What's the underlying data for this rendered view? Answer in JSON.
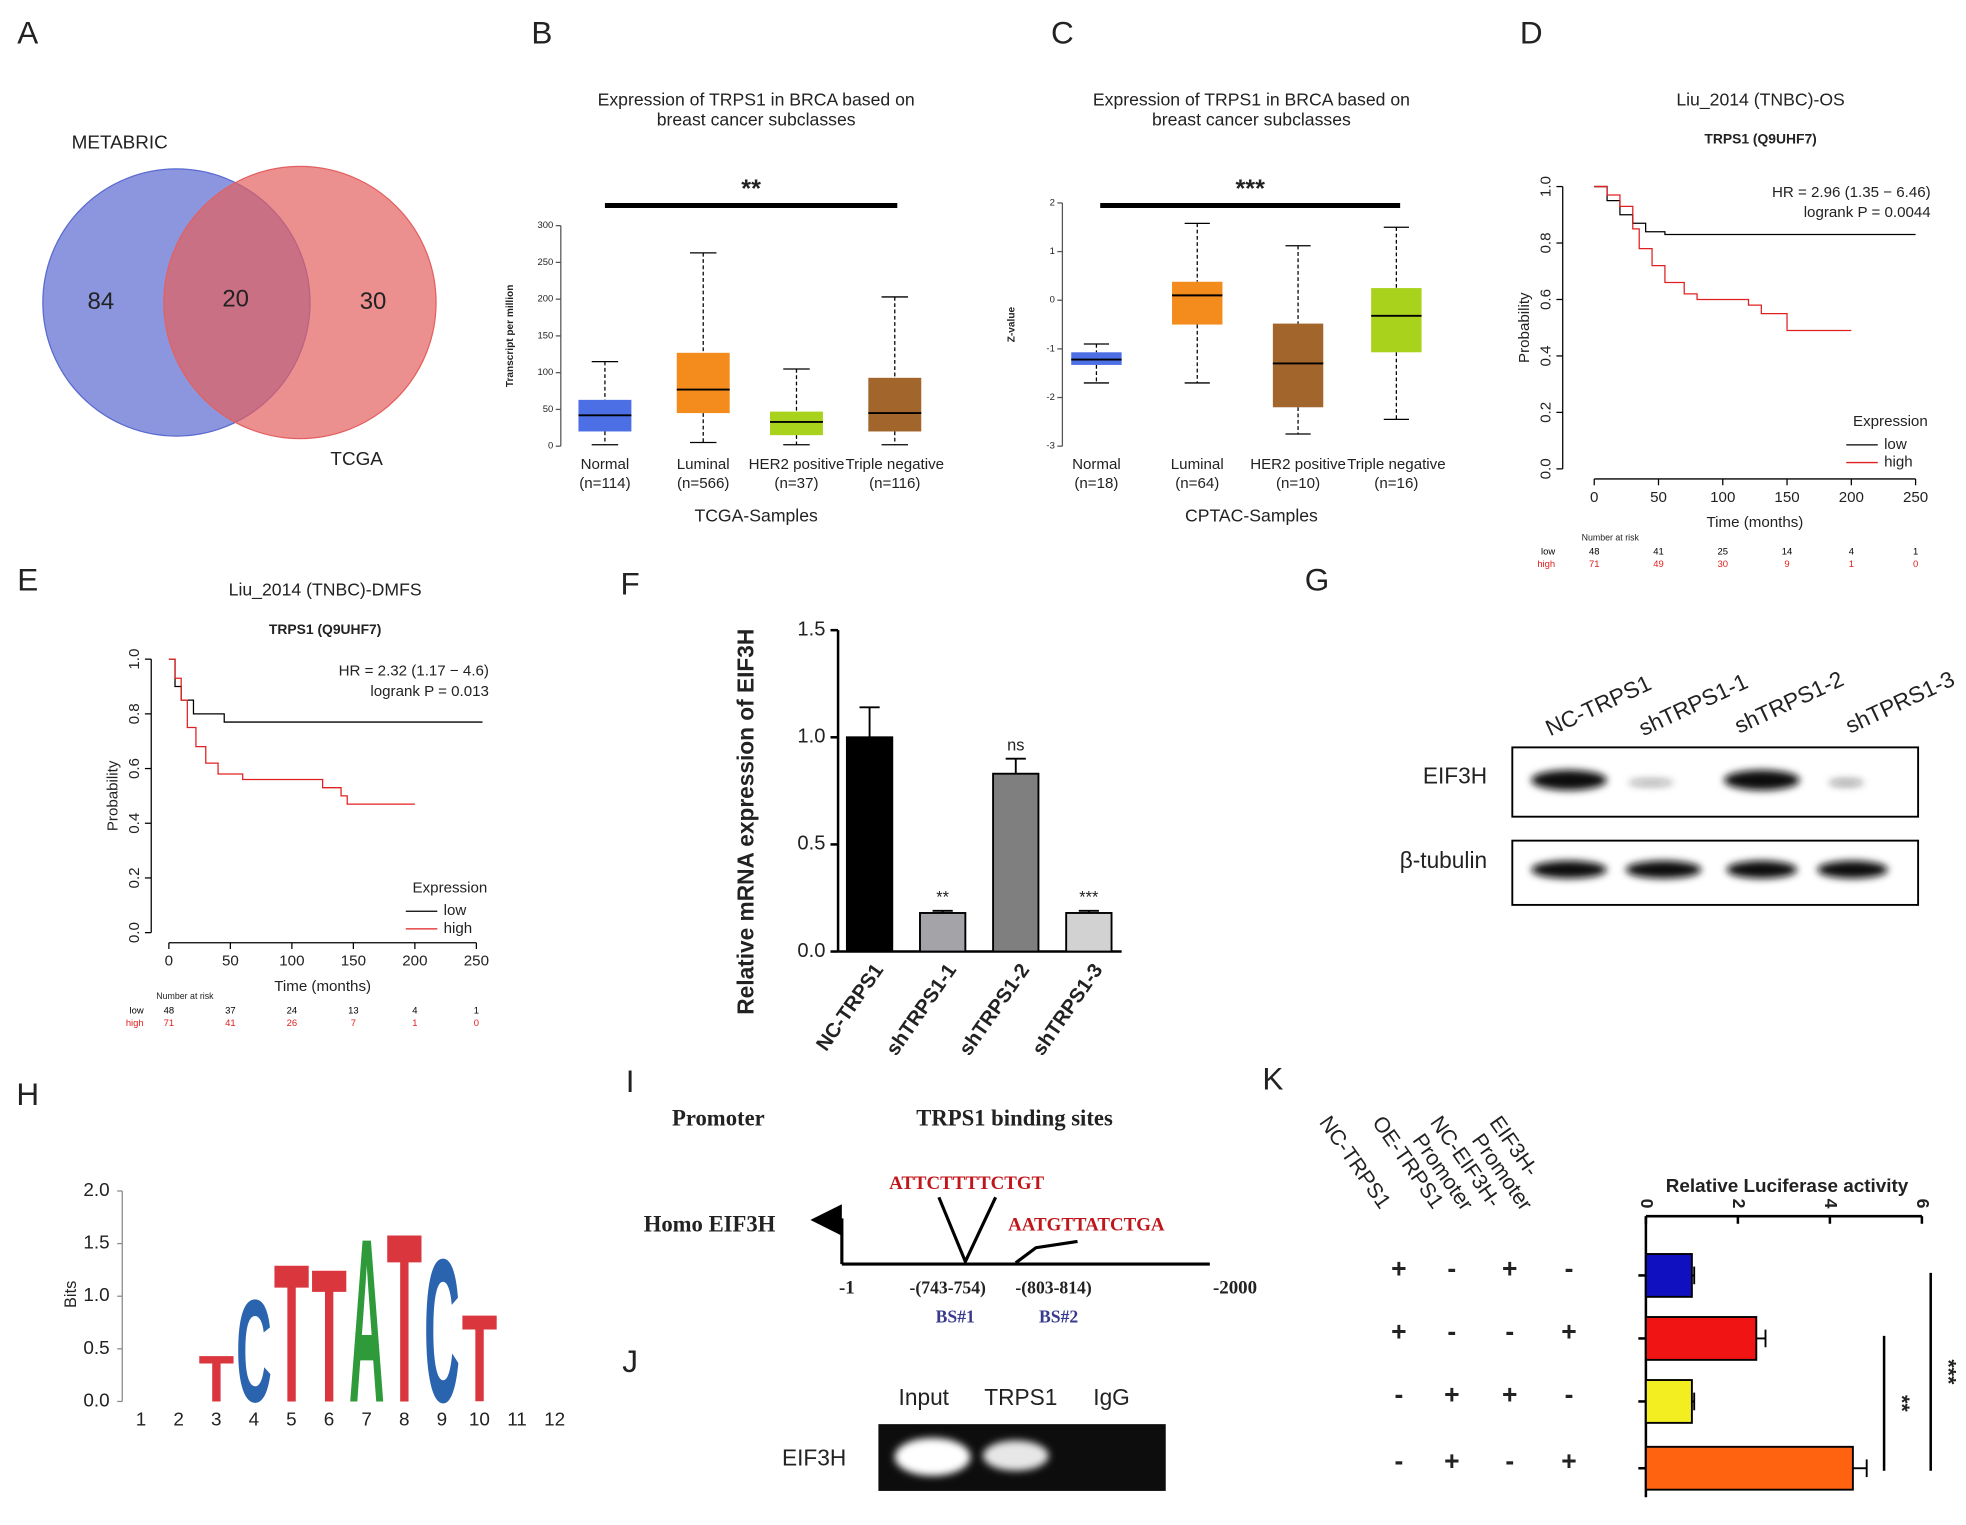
{
  "figure": {
    "panel_labels": [
      "A",
      "B",
      "C",
      "D",
      "E",
      "F",
      "G",
      "H",
      "I",
      "J",
      "K"
    ]
  },
  "chart_data": [
    {
      "type": "venn",
      "sets": [
        {
          "name": "METABRIC",
          "color": "#5a6ad0",
          "only": 84
        },
        {
          "name": "TCGA",
          "color": "#e46060",
          "only": 30
        }
      ],
      "intersection": 20
    },
    {
      "type": "box",
      "title": [
        "Expression of TRPS1 in BRCA based on",
        "breast cancer subclasses"
      ],
      "ylabel": "Transcript per million",
      "xlabel": "TCGA-Samples",
      "categories": [
        "Normal",
        "Luminal",
        "HER2 positive",
        "Triple negative"
      ],
      "category_counts": [
        "(n=114)",
        "(n=566)",
        "(n=37)",
        "(n=116)"
      ],
      "colors": [
        "#4d6fe6",
        "#f38b1d",
        "#a9d21d",
        "#a2652c"
      ],
      "ylim": [
        0,
        300
      ],
      "yticks": [
        0,
        50,
        100,
        150,
        200,
        250,
        300
      ],
      "min": [
        2,
        5,
        2,
        2
      ],
      "q1": [
        20,
        45,
        15,
        20
      ],
      "median": [
        42,
        77,
        33,
        45
      ],
      "q3": [
        63,
        127,
        47,
        93
      ],
      "max": [
        115,
        263,
        105,
        203
      ],
      "significance": "**"
    },
    {
      "type": "box",
      "title": [
        "Expression of TRPS1 in BRCA based on",
        "breast cancer subclasses"
      ],
      "ylabel": "Z-value",
      "xlabel": "CPTAC-Samples",
      "categories": [
        "Normal",
        "Luminal",
        "HER2 positive",
        "Triple negative"
      ],
      "category_counts": [
        "(n=18)",
        "(n=64)",
        "(n=10)",
        "(n=16)"
      ],
      "colors": [
        "#4d6fe6",
        "#f38b1d",
        "#a2652c",
        "#a9d21d"
      ],
      "ylim": [
        -3,
        2
      ],
      "yticks": [
        -3,
        -2,
        -1,
        0,
        1,
        2
      ],
      "min": [
        -1.7,
        -1.7,
        -2.75,
        -2.45
      ],
      "q1": [
        -1.33,
        -0.5,
        -2.2,
        -1.07
      ],
      "median": [
        -1.22,
        0.1,
        -1.3,
        -0.32
      ],
      "q3": [
        -1.07,
        0.38,
        -0.48,
        0.25
      ],
      "max": [
        -0.9,
        1.58,
        1.12,
        1.5
      ],
      "significance": "***"
    },
    {
      "type": "km",
      "title": "Liu_2014 (TNBC)-OS",
      "subtitle": "TRPS1 (Q9UHF7)",
      "xlabel": "Time (months)",
      "ylabel": "Probability",
      "xlim": [
        0,
        250
      ],
      "ylim": [
        0,
        1
      ],
      "xticks": [
        0,
        50,
        100,
        150,
        200,
        250
      ],
      "yticks": [
        {
          "value": 0,
          "label": "0.0"
        },
        0.2,
        0.4,
        0.6,
        0.8,
        {
          "value": 1,
          "label": "1.0"
        }
      ],
      "annotations": [
        "HR = 2.96 (1.35 − 6.46)",
        "logrank P = 0.0044"
      ],
      "legend_title": "Expression",
      "series": [
        {
          "name": "low",
          "color": "#000000",
          "x": [
            0,
            10,
            20,
            30,
            40,
            55,
            250
          ],
          "values": [
            1,
            0.95,
            0.9,
            0.87,
            0.84,
            0.83,
            0.83
          ]
        },
        {
          "name": "high",
          "color": "#e02020",
          "x": [
            0,
            10,
            20,
            30,
            35,
            45,
            55,
            70,
            80,
            120,
            130,
            150,
            200
          ],
          "values": [
            1,
            0.97,
            0.93,
            0.85,
            0.78,
            0.72,
            0.66,
            0.62,
            0.6,
            0.58,
            0.55,
            0.49,
            0.49
          ]
        }
      ],
      "risk_title": "Number at risk",
      "risk": [
        [
          48,
          41,
          25,
          14,
          4,
          1
        ],
        [
          71,
          49,
          30,
          9,
          1,
          0
        ]
      ]
    },
    {
      "type": "km",
      "title": "Liu_2014 (TNBC)-DMFS",
      "subtitle": "TRPS1 (Q9UHF7)",
      "xlabel": "Time (months)",
      "ylabel": "Probability",
      "xlim": [
        0,
        250
      ],
      "ylim": [
        0,
        1
      ],
      "xticks": [
        0,
        50,
        100,
        150,
        200,
        250
      ],
      "yticks": [
        {
          "value": 0,
          "label": "0.0"
        },
        0.2,
        0.4,
        0.6,
        0.8,
        {
          "value": 1,
          "label": "1.0"
        }
      ],
      "annotations": [
        "HR = 2.32 (1.17 − 4.6)",
        "logrank P = 0.013"
      ],
      "legend_title": "Expression",
      "series": [
        {
          "name": "low",
          "color": "#000000",
          "x": [
            0,
            5,
            10,
            20,
            45,
            255
          ],
          "values": [
            1,
            0.9,
            0.85,
            0.8,
            0.77,
            0.77
          ]
        },
        {
          "name": "high",
          "color": "#e02020",
          "x": [
            0,
            5,
            10,
            15,
            22,
            30,
            40,
            60,
            110,
            125,
            140,
            145,
            200
          ],
          "values": [
            1,
            0.93,
            0.85,
            0.75,
            0.68,
            0.62,
            0.58,
            0.56,
            0.56,
            0.53,
            0.5,
            0.47,
            0.47
          ]
        }
      ],
      "risk_title": "Number at risk",
      "risk": [
        [
          48,
          37,
          24,
          13,
          4,
          1
        ],
        [
          71,
          41,
          26,
          7,
          1,
          0
        ]
      ]
    },
    {
      "type": "bar",
      "ylabel": "Relative mRNA expression of EIF3H",
      "categories": [
        "NC-TRPS1",
        "shTRPS1-1",
        "shTRPS1-2",
        "shTRPS1-3"
      ],
      "values": [
        1,
        0.18,
        0.83,
        0.18
      ],
      "errors": [
        0.14,
        0.01,
        0.07,
        0.01
      ],
      "colors": [
        "#000000",
        "#a3a3a8",
        "#7f7f7f",
        "#d2d2d2"
      ],
      "significance": [
        null,
        "**",
        "ns",
        "***"
      ],
      "ylim": [
        0,
        1.5
      ],
      "yticks": [
        {
          "value": 0,
          "label": "0.0"
        },
        0.5,
        {
          "value": 1,
          "label": "1.0"
        },
        1.5
      ]
    },
    {
      "type": "logo",
      "ylabel": "Bits",
      "xlim": [
        0.5,
        12.5
      ],
      "xticks": [
        1,
        2,
        3,
        4,
        5,
        6,
        7,
        8,
        9,
        10,
        11,
        12
      ],
      "ylim": [
        0,
        2
      ],
      "yticks": [
        {
          "value": 0,
          "label": "0.0"
        },
        0.5,
        {
          "value": 1,
          "label": "1.0"
        },
        1.5,
        {
          "value": 2,
          "label": "2.0"
        }
      ],
      "x": [
        3,
        4,
        5,
        6,
        7,
        8,
        9,
        10
      ],
      "letters": [
        "T",
        "C",
        "T",
        "T",
        "A",
        "T",
        "C",
        "T"
      ],
      "values": [
        0.45,
        1.0,
        1.35,
        1.3,
        1.6,
        1.65,
        1.4,
        0.85
      ],
      "letter_colors": {
        "A": "#2e9a3a",
        "C": "#2b64ae",
        "T": "#d9363e"
      }
    },
    {
      "type": "hbar",
      "title": "Relative Luciferase activity",
      "condition_labels": [
        [
          "NC-TRPS1"
        ],
        [
          "OE-TRPS1"
        ],
        [
          "NC-EIF3H-",
          "Promoter"
        ],
        [
          "EIF3H-",
          "Promoter"
        ]
      ],
      "conditions": [
        [
          "+",
          "-",
          "+",
          "-"
        ],
        [
          "+",
          "-",
          "-",
          "+"
        ],
        [
          "-",
          "+",
          "+",
          "-"
        ],
        [
          "-",
          "+",
          "-",
          "+"
        ]
      ],
      "values": [
        1.0,
        2.4,
        1.0,
        4.5
      ],
      "errors": [
        0.05,
        0.2,
        0.05,
        0.3
      ],
      "colors": [
        "#1010c0",
        "#f01414",
        "#f2ee22",
        "#ff6310"
      ],
      "xlim": [
        0,
        6
      ],
      "xticks": [
        0,
        2,
        4,
        6
      ],
      "comparisons": [
        {
          "label": "**",
          "between": [
            1,
            3
          ]
        },
        {
          "label": "***",
          "between": [
            0,
            3
          ]
        }
      ]
    }
  ],
  "blot": {
    "columns": [
      "NC-TRPS1",
      "shTRPS1-1",
      "shTRPS1-2",
      "shTPRS1-3"
    ],
    "rows": [
      "EIF3H",
      "β-tubulin"
    ]
  },
  "diagram": {
    "promoter": "Promoter",
    "binding_sites": "TRPS1 binding sites",
    "gene": "Homo EIF3H",
    "start": "-1",
    "end": "-2000",
    "sites": [
      {
        "sequence": "ATTCTTTTCTGT",
        "range": "-(743-754)",
        "name": "BS#1"
      },
      {
        "sequence": "AATGTTATCTGA",
        "range": "-(803-814)",
        "name": "BS#2"
      }
    ]
  },
  "chip": {
    "lanes": [
      "Input",
      "TRPS1",
      "IgG"
    ],
    "row": "EIF3H"
  }
}
